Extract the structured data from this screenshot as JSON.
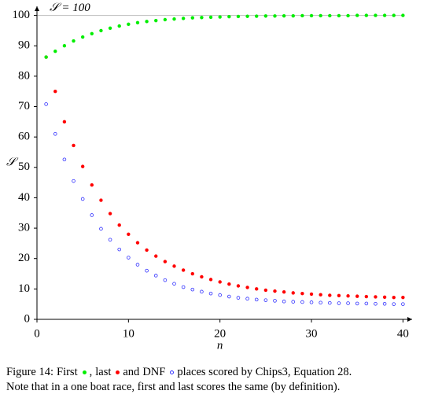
{
  "chart_data": {
    "type": "scatter",
    "xlabel": "n",
    "ylabel": "𝒮",
    "x": [
      1,
      2,
      3,
      4,
      5,
      6,
      7,
      8,
      9,
      10,
      11,
      12,
      13,
      14,
      15,
      16,
      17,
      18,
      19,
      20,
      21,
      22,
      23,
      24,
      25,
      26,
      27,
      28,
      29,
      30,
      31,
      32,
      33,
      34,
      35,
      36,
      37,
      38,
      39,
      40
    ],
    "series": [
      {
        "name": "last",
        "color": "#ff0000",
        "marker": "filled",
        "values": [
          86.3,
          75,
          65,
          57.2,
          50.3,
          44.2,
          39.2,
          34.8,
          31,
          28,
          25.2,
          22.8,
          20.8,
          19,
          17.5,
          16.2,
          15,
          14,
          13.1,
          12.3,
          11.6,
          11,
          10.5,
          10,
          9.6,
          9.3,
          9,
          8.7,
          8.5,
          8.3,
          8.1,
          7.9,
          7.8,
          7.7,
          7.6,
          7.5,
          7.4,
          7.3,
          7.2,
          7.2
        ]
      },
      {
        "name": "DNF",
        "color": "#3333ff",
        "marker": "open",
        "values": [
          70.8,
          61,
          52.6,
          45.5,
          39.6,
          34.3,
          29.8,
          26.2,
          23,
          20.3,
          18,
          16,
          14.4,
          12.9,
          11.7,
          10.6,
          9.8,
          9.1,
          8.5,
          8,
          7.5,
          7.1,
          6.8,
          6.5,
          6.3,
          6.1,
          5.9,
          5.8,
          5.7,
          5.6,
          5.5,
          5.4,
          5.3,
          5.3,
          5.2,
          5.2,
          5.1,
          5.1,
          5,
          5
        ]
      },
      {
        "name": "First",
        "color": "#00ee00",
        "marker": "filled",
        "values": [
          86.3,
          88.2,
          90,
          91.6,
          92.9,
          94,
          95,
          95.8,
          96.5,
          97.1,
          97.6,
          98,
          98.3,
          98.6,
          98.8,
          99,
          99.2,
          99.3,
          99.4,
          99.5,
          99.6,
          99.65,
          99.7,
          99.75,
          99.8,
          99.8,
          99.85,
          99.85,
          99.9,
          99.9,
          99.9,
          99.9,
          99.9,
          99.9,
          100,
          100,
          100,
          100,
          100,
          100
        ]
      }
    ],
    "reference_line": {
      "value": 100,
      "label": "𝒮 = 100",
      "color": "#bbbbbb"
    },
    "xlim": [
      0,
      41
    ],
    "xticks": [
      0,
      10,
      20,
      30,
      40
    ],
    "ylim": [
      0,
      103
    ],
    "yticks": [
      0,
      10,
      20,
      30,
      40,
      50,
      60,
      70,
      80,
      90,
      100
    ],
    "caption": {
      "parts": [
        "Figure 14:",
        ",",
        "and",
        "places scored by Chips3, Equation 28."
      ],
      "note": "Note that in a one boat race, first and last scores the same (by definition)."
    }
  }
}
